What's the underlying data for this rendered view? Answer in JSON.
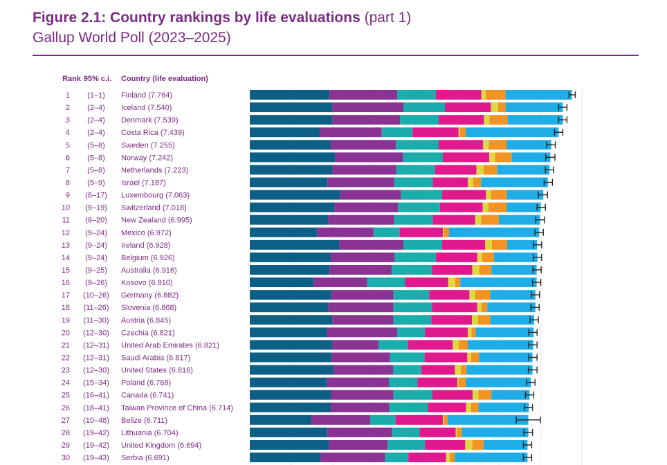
{
  "title": {
    "bold": "Figure 2.1: Country rankings by life evaluations",
    "light": "(part 1)"
  },
  "subtitle": "Gallup World Poll (2023–2025)",
  "colors": {
    "title": "#7b2b83",
    "header": "#7b2b83",
    "text": "#7b2b83",
    "segments": [
      "#0d5f86",
      "#8a3393",
      "#1aadab",
      "#e1198f",
      "#dbd93f",
      "#f39321",
      "#1eade6"
    ],
    "whisker": "#222222",
    "grid": "#e6e6e6"
  },
  "chart_data": {
    "type": "bar",
    "stacked": true,
    "orientation": "horizontal",
    "headers": {
      "rank": "Rank",
      "ci": "95% c.i.",
      "country": "Country (life evaluation)"
    },
    "xlim": [
      0,
      8
    ],
    "rows": [
      {
        "rank": "1",
        "ci": "(1–1)",
        "label": "Finland (7.764)",
        "segments": [
          1.92,
          1.63,
          0.93,
          1.1,
          0.1,
          0.48,
          1.6
        ],
        "ci_low": 7.69,
        "ci_high": 7.84
      },
      {
        "rank": "2",
        "ci": "(2–4)",
        "label": "Iceland (7.540)",
        "segments": [
          1.99,
          1.71,
          1.0,
          1.11,
          0.17,
          0.18,
          1.38
        ],
        "ci_low": 7.44,
        "ci_high": 7.64
      },
      {
        "rank": "3",
        "ci": "(2–4)",
        "label": "Denmark (7.539)",
        "segments": [
          1.99,
          1.63,
          0.93,
          1.09,
          0.13,
          0.44,
          1.33
        ],
        "ci_low": 7.44,
        "ci_high": 7.64
      },
      {
        "rank": "4",
        "ci": "(2–4)",
        "label": "Costa Rica (7.439)",
        "segments": [
          1.69,
          1.49,
          0.74,
          1.11,
          0.03,
          0.14,
          2.24
        ],
        "ci_low": 7.34,
        "ci_high": 7.54
      },
      {
        "rank": "5",
        "ci": "(5–8)",
        "label": "Sweden (7.255)",
        "segments": [
          1.95,
          1.57,
          1.03,
          1.07,
          0.14,
          0.43,
          1.07
        ],
        "ci_low": 7.15,
        "ci_high": 7.36
      },
      {
        "rank": "6",
        "ci": "(5–8)",
        "label": "Norway (7.242)",
        "segments": [
          2.06,
          1.63,
          0.96,
          1.12,
          0.14,
          0.4,
          0.93
        ],
        "ci_low": 7.13,
        "ci_high": 7.35
      },
      {
        "rank": "7",
        "ci": "(5–8)",
        "label": "Netherlands (7.223)",
        "segments": [
          1.99,
          1.54,
          0.93,
          1.0,
          0.17,
          0.33,
          1.26
        ],
        "ci_low": 7.12,
        "ci_high": 7.32
      },
      {
        "rank": "8",
        "ci": "(5–9)",
        "label": "Israel (7.187)",
        "segments": [
          1.87,
          1.61,
          0.93,
          0.84,
          0.13,
          0.19,
          1.61
        ],
        "ci_low": 7.09,
        "ci_high": 7.29
      },
      {
        "rank": "9",
        "ci": "(8–17)",
        "label": "Luxembourg (7.063)",
        "segments": [
          2.18,
          1.46,
          0.99,
          1.06,
          0.12,
          0.38,
          0.88
        ],
        "ci_low": 6.95,
        "ci_high": 7.17
      },
      {
        "rank": "10",
        "ci": "(9–19)",
        "label": "Switzerland (7.018)",
        "segments": [
          2.04,
          1.53,
          1.01,
          1.03,
          0.14,
          0.44,
          0.82
        ],
        "ci_low": 6.92,
        "ci_high": 7.12
      },
      {
        "rank": "11",
        "ci": "(9–20)",
        "label": "New Zealand (6.995)",
        "segments": [
          1.89,
          1.59,
          0.93,
          1.02,
          0.14,
          0.43,
          0.99
        ],
        "ci_low": 6.89,
        "ci_high": 7.1
      },
      {
        "rank": "12",
        "ci": "(9–24)",
        "label": "Mexico (6.972)",
        "segments": [
          1.62,
          1.36,
          0.63,
          1.04,
          0.03,
          0.12,
          2.17
        ],
        "ci_low": 6.87,
        "ci_high": 7.07
      },
      {
        "rank": "13",
        "ci": "(9–24)",
        "label": "Ireland (6.928)",
        "segments": [
          2.16,
          1.54,
          0.93,
          1.04,
          0.16,
          0.37,
          0.72
        ],
        "ci_low": 6.83,
        "ci_high": 7.03
      },
      {
        "rank": "14",
        "ci": "(9–24)",
        "label": "Belgium (6.926)",
        "segments": [
          1.95,
          1.54,
          0.99,
          1.0,
          0.12,
          0.28,
          1.05
        ],
        "ci_low": 6.83,
        "ci_high": 7.03
      },
      {
        "rank": "15",
        "ci": "(9–25)",
        "label": "Australia (6.916)",
        "segments": [
          1.92,
          1.5,
          0.97,
          0.97,
          0.17,
          0.29,
          1.09
        ],
        "ci_low": 6.82,
        "ci_high": 7.02
      },
      {
        "rank": "16",
        "ci": "(9–26)",
        "label": "Kosovo (6.910)",
        "segments": [
          1.54,
          1.29,
          0.91,
          1.04,
          0.17,
          0.12,
          1.84
        ],
        "ci_low": 6.81,
        "ci_high": 7.01
      },
      {
        "rank": "17",
        "ci": "(10–26)",
        "label": "Germany (6.882)",
        "segments": [
          1.96,
          1.5,
          0.86,
          0.97,
          0.14,
          0.36,
          1.09
        ],
        "ci_low": 6.78,
        "ci_high": 6.98
      },
      {
        "rank": "18",
        "ci": "(11–26)",
        "label": "Slovenia (6.868)",
        "segments": [
          1.89,
          1.57,
          0.93,
          1.09,
          0.1,
          0.14,
          1.16
        ],
        "ci_low": 6.77,
        "ci_high": 6.97
      },
      {
        "rank": "19",
        "ci": "(11–30)",
        "label": "Austria (6.845)",
        "segments": [
          1.99,
          1.47,
          0.91,
          0.98,
          0.15,
          0.29,
          1.06
        ],
        "ci_low": 6.75,
        "ci_high": 6.95
      },
      {
        "rank": "20",
        "ci": "(12–30)",
        "label": "Czechia (6.821)",
        "segments": [
          1.86,
          1.69,
          0.67,
          1.03,
          0.09,
          0.1,
          1.4
        ],
        "ci_low": 6.72,
        "ci_high": 6.92
      },
      {
        "rank": "21",
        "ci": "(12–31)",
        "label": "United Arab Emirates (6.821)",
        "segments": [
          1.99,
          1.11,
          0.71,
          1.08,
          0.14,
          0.22,
          1.58
        ],
        "ci_low": 6.72,
        "ci_high": 6.92
      },
      {
        "rank": "22",
        "ci": "(12–31)",
        "label": "Saudi Arabia (6.817)",
        "segments": [
          1.97,
          1.41,
          0.83,
          1.03,
          0.09,
          0.19,
          1.29
        ],
        "ci_low": 6.72,
        "ci_high": 6.92
      },
      {
        "rank": "23",
        "ci": "(12–30)",
        "label": "United States (6.816)",
        "segments": [
          2.01,
          1.44,
          0.68,
          0.81,
          0.14,
          0.14,
          1.59
        ],
        "ci_low": 6.71,
        "ci_high": 6.92
      },
      {
        "rank": "24",
        "ci": "(15–34)",
        "label": "Poland (6.768)",
        "segments": [
          1.86,
          1.49,
          0.69,
          0.96,
          0.03,
          0.17,
          1.57
        ],
        "ci_low": 6.67,
        "ci_high": 6.87
      },
      {
        "rank": "25",
        "ci": "(16–41)",
        "label": "Canada (6.741)",
        "segments": [
          1.95,
          1.51,
          0.94,
          0.97,
          0.14,
          0.31,
          0.92
        ],
        "ci_low": 6.64,
        "ci_high": 6.84
      },
      {
        "rank": "26",
        "ci": "(18–41)",
        "label": "Taiwan Province of China (6.714)",
        "segments": [
          1.95,
          1.41,
          0.93,
          0.92,
          0.12,
          0.18,
          1.21
        ],
        "ci_low": 6.62,
        "ci_high": 6.81
      },
      {
        "rank": "27",
        "ci": "(10–48)",
        "label": "Belize (6.711)",
        "segments": [
          1.49,
          1.41,
          0.61,
          1.14,
          0.03,
          0.09,
          1.94
        ],
        "ci_low": 6.42,
        "ci_high": 7.0
      },
      {
        "rank": "28",
        "ci": "(19–42)",
        "label": "Lithuania (6.704)",
        "segments": [
          1.87,
          1.56,
          0.66,
          0.87,
          0.03,
          0.12,
          1.6
        ],
        "ci_low": 6.6,
        "ci_high": 6.81
      },
      {
        "rank": "29",
        "ci": "(19–42)",
        "label": "United Kingdom (6.694)",
        "segments": [
          1.91,
          1.41,
          0.9,
          0.97,
          0.17,
          0.27,
          1.06
        ],
        "ci_low": 6.59,
        "ci_high": 6.79
      },
      {
        "rank": "30",
        "ci": "(19–43)",
        "label": "Serbia (6.691)",
        "segments": [
          1.71,
          1.55,
          0.56,
          0.91,
          0.09,
          0.12,
          1.75
        ],
        "ci_low": 6.59,
        "ci_high": 6.79
      }
    ]
  }
}
